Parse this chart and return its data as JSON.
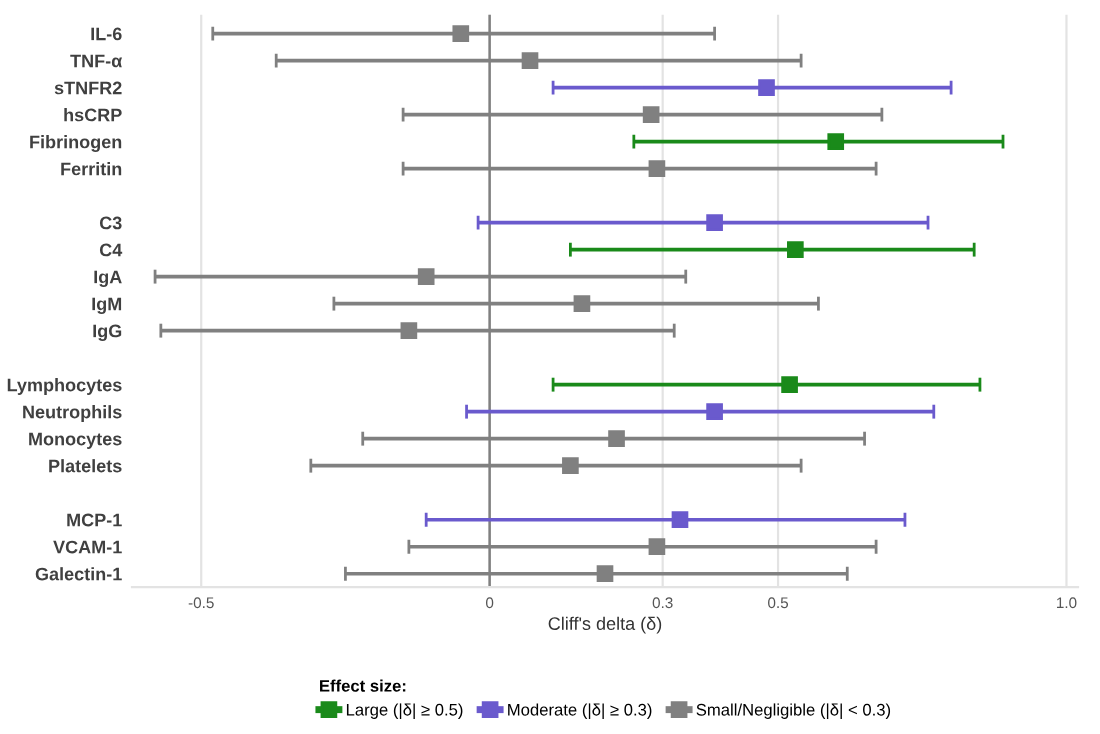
{
  "chart_data": {
    "type": "scatter",
    "orientation": "horizontal",
    "marker": "square",
    "grid": "x",
    "legend": "bottom",
    "legend_title": "Effect size:",
    "xlabel": "Cliff's delta (δ)",
    "categories": [
      "IL-6",
      "TNF-α",
      "sTNFR2",
      "hsCRP",
      "Fibrinogen",
      "Ferritin",
      null,
      "C3",
      "C4",
      "IgA",
      "IgM",
      "IgG",
      null,
      "Lymphocytes",
      "Neutrophils",
      "Monocytes",
      "Platelets",
      null,
      "MCP-1",
      "VCAM-1",
      "Galectin-1"
    ],
    "xlim": [
      -0.62,
      1.02
    ],
    "xticks": [
      -0.5,
      0,
      0.3,
      0.5,
      {
        "value": 1.0,
        "label": "1.0"
      }
    ],
    "ref_lines": [
      {
        "axis": "x",
        "value": 0,
        "color": "#808080"
      }
    ],
    "series": [
      {
        "name": "Large (|δ| ≥ 0.5)",
        "color": "#1a8a1a",
        "values": [
          null,
          null,
          null,
          null,
          0.6,
          null,
          null,
          null,
          0.53,
          null,
          null,
          null,
          null,
          0.52,
          null,
          null,
          null,
          null,
          null,
          null,
          null
        ],
        "errors": [
          null,
          null,
          null,
          null,
          [
            0.25,
            0.89
          ],
          null,
          null,
          null,
          [
            0.14,
            0.84
          ],
          null,
          null,
          null,
          null,
          [
            0.11,
            0.85
          ],
          null,
          null,
          null,
          null,
          null,
          null,
          null
        ]
      },
      {
        "name": "Moderate (|δ| ≥ 0.3)",
        "color": "#6a5acd",
        "values": [
          null,
          null,
          0.48,
          null,
          null,
          null,
          null,
          0.39,
          null,
          null,
          null,
          null,
          null,
          null,
          0.39,
          null,
          null,
          null,
          0.33,
          null,
          null
        ],
        "errors": [
          null,
          null,
          [
            0.11,
            0.8
          ],
          null,
          null,
          null,
          null,
          [
            -0.02,
            0.76
          ],
          null,
          null,
          null,
          null,
          null,
          null,
          [
            -0.04,
            0.77
          ],
          null,
          null,
          null,
          [
            -0.11,
            0.72
          ],
          null,
          null
        ]
      },
      {
        "name": "Small/Negligible (|δ| < 0.3)",
        "color": "#808080",
        "values": [
          -0.05,
          0.07,
          null,
          0.28,
          null,
          0.29,
          null,
          null,
          null,
          -0.11,
          0.16,
          -0.14,
          null,
          null,
          null,
          0.22,
          0.14,
          null,
          null,
          0.29,
          0.2
        ],
        "errors": [
          [
            -0.48,
            0.39
          ],
          [
            -0.37,
            0.54
          ],
          null,
          [
            -0.15,
            0.68
          ],
          null,
          [
            -0.15,
            0.67
          ],
          null,
          null,
          null,
          [
            -0.58,
            0.34
          ],
          [
            -0.27,
            0.57
          ],
          [
            -0.57,
            0.32
          ],
          null,
          null,
          null,
          [
            -0.22,
            0.65
          ],
          [
            -0.31,
            0.54
          ],
          null,
          null,
          [
            -0.14,
            0.67
          ],
          [
            -0.25,
            0.62
          ]
        ]
      }
    ]
  }
}
